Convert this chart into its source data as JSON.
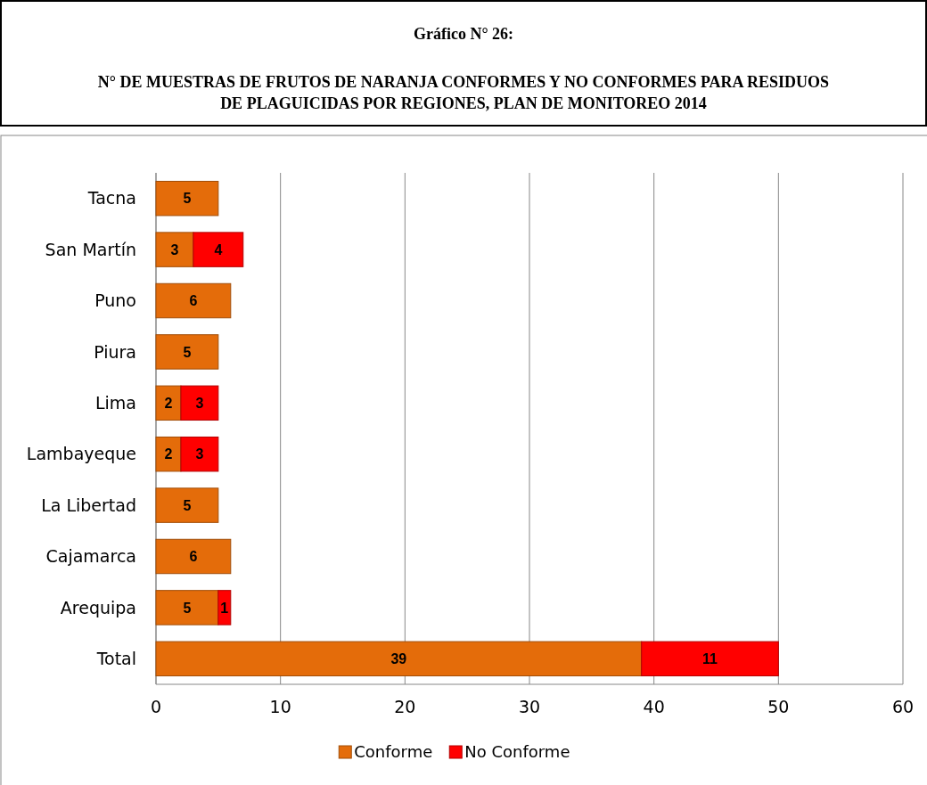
{
  "chart_data": {
    "type": "bar",
    "orientation": "horizontal",
    "stacked": true,
    "title": "Gráfico N° 26:",
    "subtitle": "N° DE MUESTRAS DE FRUTOS DE NARANJA CONFORMES Y NO CONFORMES PARA RESIDUOS DE PLAGUICIDAS POR REGIONES, PLAN DE MONITOREO 2014",
    "categories": [
      "Tacna",
      "San Martín",
      "Puno",
      "Piura",
      "Lima",
      "Lambayeque",
      "La Libertad",
      "Cajamarca",
      "Arequipa",
      "Total"
    ],
    "series": [
      {
        "name": "Conforme",
        "color": "#e46c0a",
        "values": [
          5,
          3,
          6,
          5,
          2,
          2,
          5,
          6,
          5,
          39
        ]
      },
      {
        "name": "No Conforme",
        "color": "#ff0000",
        "values": [
          null,
          4,
          null,
          null,
          3,
          3,
          null,
          null,
          1,
          11
        ]
      }
    ],
    "xlim": [
      0,
      60
    ],
    "xticks": [
      0,
      10,
      20,
      30,
      40,
      50,
      60
    ],
    "grid": "x",
    "legend": "bottom",
    "data_labels": true
  }
}
